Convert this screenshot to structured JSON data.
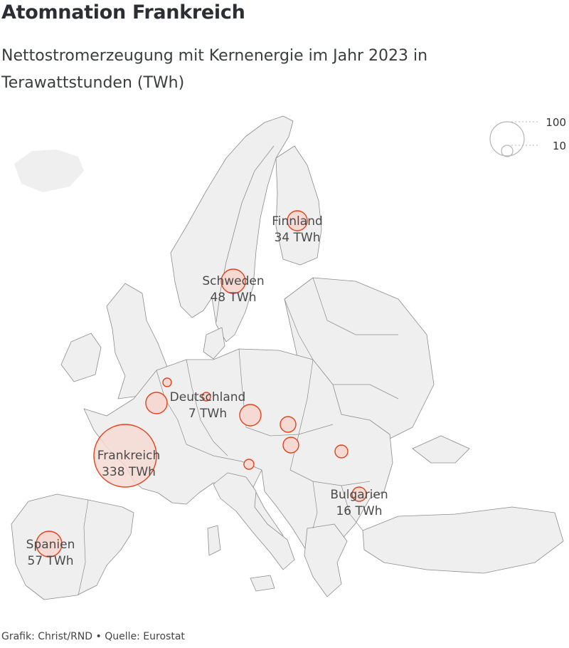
{
  "header": {
    "title": "Atomnation Frankreich",
    "subtitle": "Nettostromerzeugung mit Kernenergie im Jahr 2023 in Terawattstunden (TWh)"
  },
  "footer": {
    "credit": "Grafik: Christ/RND",
    "separator": "•",
    "source": "Quelle: Eurostat"
  },
  "legend": {
    "labels": [
      "100",
      "10"
    ]
  },
  "colors": {
    "land": "#efefef",
    "border": "#8c8c8c",
    "bubble_fill": "#f6d9d3",
    "bubble_stroke": "#e0441c"
  },
  "map": {
    "labels": [
      {
        "name": "Finnland",
        "value": "34 TWh"
      },
      {
        "name": "Schweden",
        "value": "48 TWh"
      },
      {
        "name": "Deutschland",
        "value": "7 TWh"
      },
      {
        "name": "Frankreich",
        "value": "338 TWh"
      },
      {
        "name": "Bulgarien",
        "value": "16 TWh"
      },
      {
        "name": "Spanien",
        "value": "57 TWh"
      }
    ]
  }
}
